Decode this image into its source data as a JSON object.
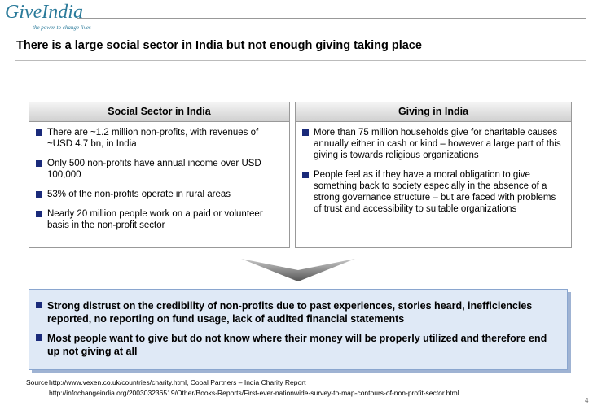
{
  "header": {
    "logo": "GiveIndia",
    "tagline": "the power to change lives",
    "title": "There is a large social sector in India but not enough giving taking place"
  },
  "panels": [
    {
      "title": "Social Sector in India",
      "bullets": [
        "There are ~1.2 million non-profits, with revenues of ~USD 4.7 bn, in India",
        "Only 500 non-profits have annual income over USD 100,000",
        "53% of the non-profits operate in rural areas",
        "Nearly 20 million people work on a paid or volunteer basis in the non-profit sector"
      ]
    },
    {
      "title": "Giving in India",
      "bullets": [
        "More than 75 million households give for charitable causes annually either in cash or kind – however a large part of this giving is towards religious organizations",
        "People feel as if they have a moral obligation to give something back to society especially in the absence of a strong governance structure – but are faced with problems of trust and accessibility to suitable organizations"
      ]
    }
  ],
  "conclusion": {
    "bullets": [
      "Strong distrust on the credibility of non-profits due to past experiences, stories heard, inefficiencies reported, no reporting on fund usage, lack of audited financial statements",
      "Most people want to give but do not know where their money will be properly utilized and therefore end up not giving at all"
    ]
  },
  "footer": {
    "source_label": "Source :",
    "sources": [
      "http://www.vexen.co.uk/countries/charity.html, Copal Partners – India Charity Report",
      "http://infochangeindia.org/200303236519/Other/Books-Reports/First-ever-nationwide-survey-to-map-contours-of-non-profit-sector.html"
    ],
    "page_number": "4"
  }
}
